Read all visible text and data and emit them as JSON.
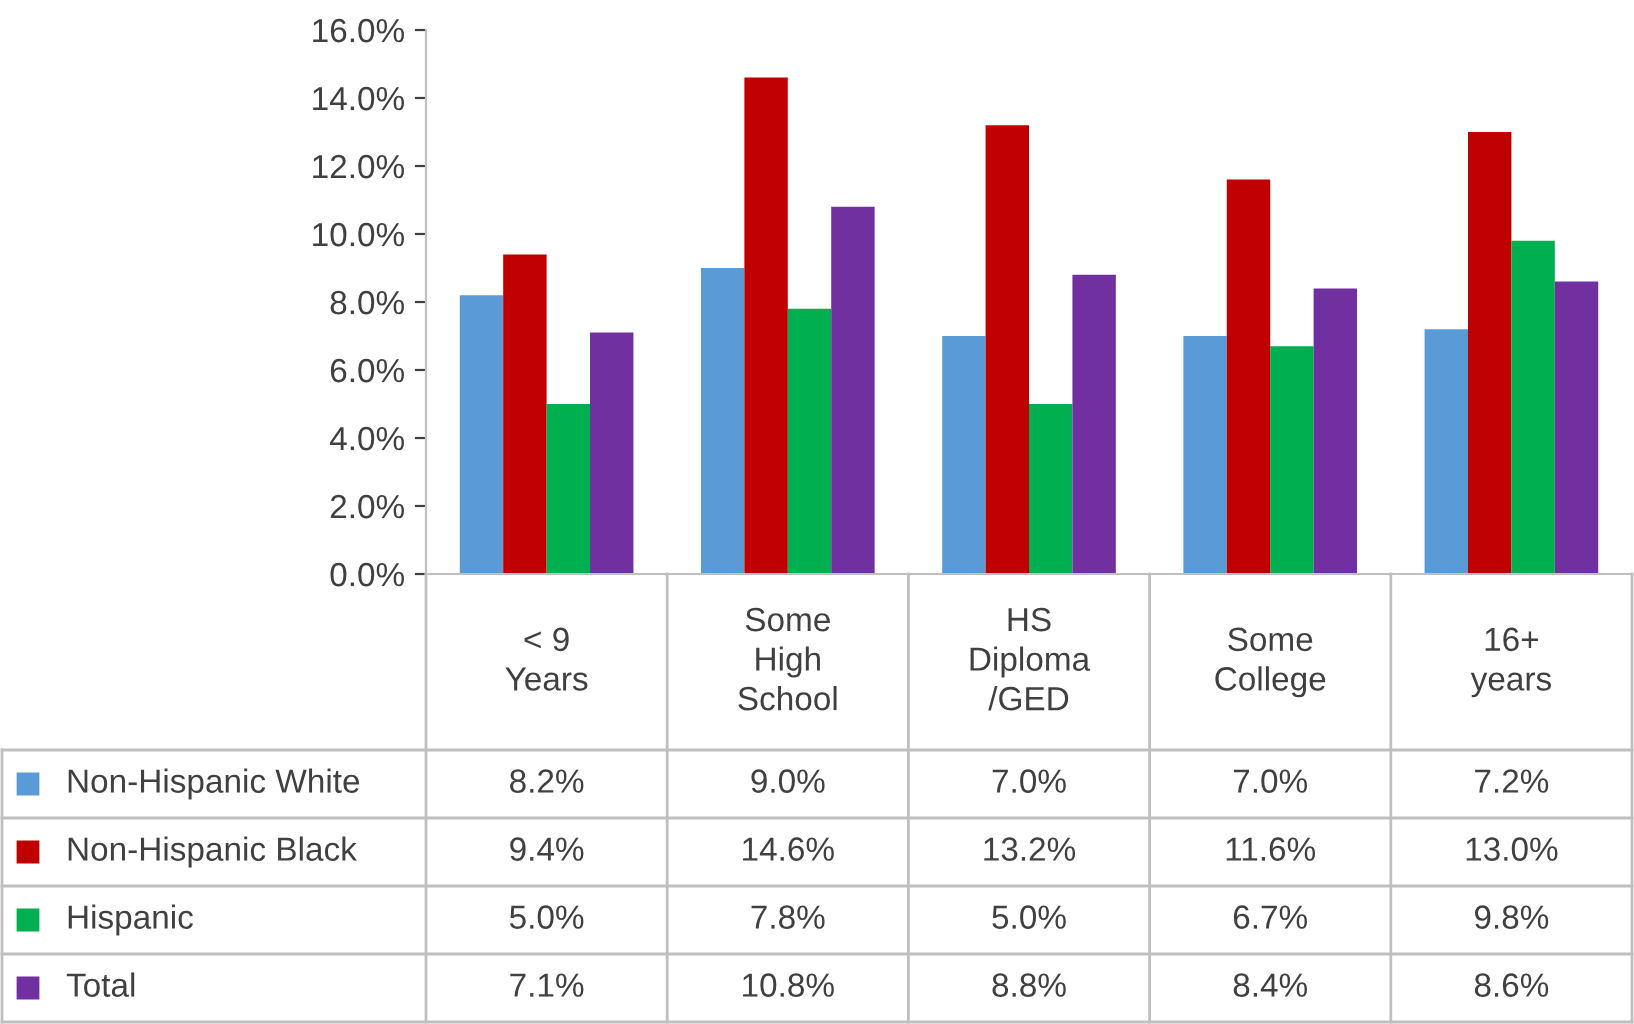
{
  "chart_data": {
    "type": "bar",
    "categories": [
      "< 9\nYears",
      "Some\nHigh\nSchool",
      "HS\nDiploma\n/GED",
      "Some\nCollege",
      "16+\nyears"
    ],
    "series": [
      {
        "name": "Non-Hispanic White",
        "color": "#5b9bd5",
        "values": [
          8.2,
          9.0,
          7.0,
          7.0,
          7.2
        ],
        "value_labels": [
          "8.2%",
          "9.0%",
          "7.0%",
          "7.0%",
          "7.2%"
        ]
      },
      {
        "name": "Non-Hispanic Black",
        "color": "#c00000",
        "values": [
          9.4,
          14.6,
          13.2,
          11.6,
          13.0
        ],
        "value_labels": [
          "9.4%",
          "14.6%",
          "13.2%",
          "11.6%",
          "13.0%"
        ]
      },
      {
        "name": "Hispanic",
        "color": "#00b050",
        "values": [
          5.0,
          7.8,
          5.0,
          6.7,
          9.8
        ],
        "value_labels": [
          "5.0%",
          "7.8%",
          "5.0%",
          "6.7%",
          "9.8%"
        ]
      },
      {
        "name": "Total",
        "color": "#7030a0",
        "values": [
          7.1,
          10.8,
          8.8,
          8.4,
          8.6
        ],
        "value_labels": [
          "7.1%",
          "10.8%",
          "8.8%",
          "8.4%",
          "8.6%"
        ]
      }
    ],
    "ylim": [
      0,
      16
    ],
    "yticks": [
      {
        "value": 0,
        "label": "0.0%"
      },
      {
        "value": 2,
        "label": "2.0%"
      },
      {
        "value": 4,
        "label": "4.0%"
      },
      {
        "value": 6,
        "label": "6.0%"
      },
      {
        "value": 8,
        "label": "8.0%"
      },
      {
        "value": 10,
        "label": "10.0%"
      },
      {
        "value": 12,
        "label": "12.0%"
      },
      {
        "value": 14,
        "label": "14.0%"
      },
      {
        "value": 16,
        "label": "16.0%"
      }
    ],
    "grid": false,
    "legend": "bottom"
  }
}
